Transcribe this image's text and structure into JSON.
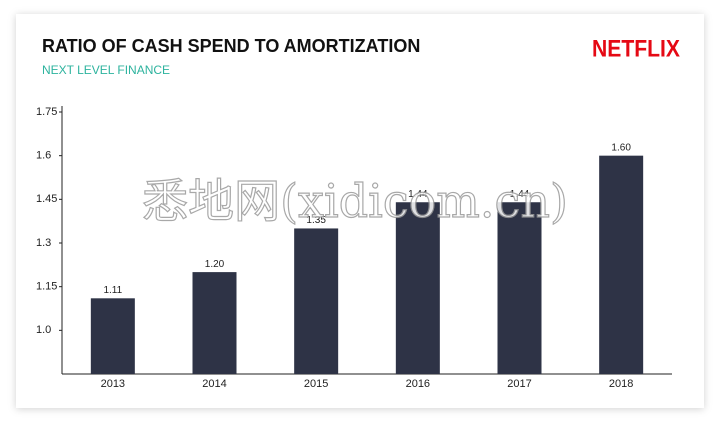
{
  "chart_data": {
    "type": "bar",
    "title": "RATIO OF CASH SPEND TO AMORTIZATION",
    "subtitle": "NEXT LEVEL FINANCE",
    "logo": "NETFLIX",
    "watermark": "悉地网(xidicom.cn)",
    "categories": [
      "2013",
      "2014",
      "2015",
      "2016",
      "2017",
      "2018"
    ],
    "values": [
      1.11,
      1.2,
      1.35,
      1.44,
      1.44,
      1.6
    ],
    "value_labels": [
      "1.11",
      "1.20",
      "1.35",
      "1.44",
      "1.44",
      "1.60"
    ],
    "color": "#2e3346",
    "ylim": [
      0.85,
      1.75
    ],
    "yticks": [
      {
        "value": 1,
        "label": "1.0"
      },
      1.15,
      1.3,
      1.45,
      1.6,
      1.75
    ],
    "grid": false
  }
}
